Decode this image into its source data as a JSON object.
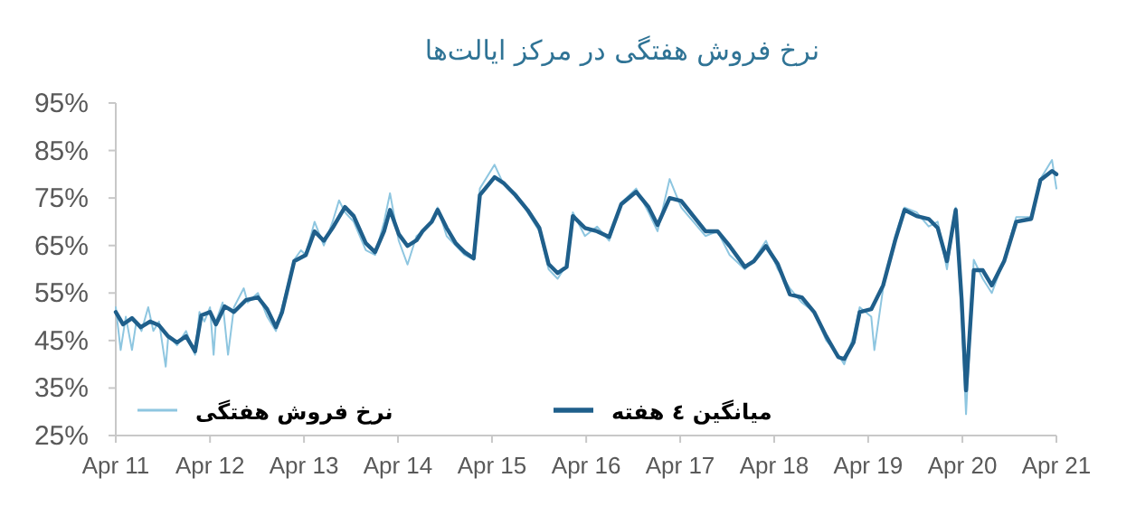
{
  "chart_data": {
    "type": "line",
    "title": "نرخ فروش هفتگی در مرکز ایالت‌ها",
    "legend": "bottom",
    "grid": false,
    "marker": "none",
    "line_style": "solid",
    "xlim": [
      "2011-04",
      "2021-04"
    ],
    "xticks": [
      {
        "value": "2011-04",
        "label": "Apr 11"
      },
      {
        "value": "2012-04",
        "label": "Apr 12"
      },
      {
        "value": "2013-04",
        "label": "Apr 13"
      },
      {
        "value": "2014-04",
        "label": "Apr 14"
      },
      {
        "value": "2015-04",
        "label": "Apr 15"
      },
      {
        "value": "2016-04",
        "label": "Apr 16"
      },
      {
        "value": "2017-04",
        "label": "Apr 17"
      },
      {
        "value": "2018-04",
        "label": "Apr 18"
      },
      {
        "value": "2019-04",
        "label": "Apr 19"
      },
      {
        "value": "2020-04",
        "label": "Apr 20"
      },
      {
        "value": "2021-04",
        "label": "Apr 21"
      }
    ],
    "ylim": [
      25,
      95
    ],
    "yticks": [
      {
        "value": 25,
        "label": "25%"
      },
      {
        "value": 35,
        "label": "35%"
      },
      {
        "value": 45,
        "label": "45%"
      },
      {
        "value": 55,
        "label": "55%"
      },
      {
        "value": 65,
        "label": "65%"
      },
      {
        "value": 75,
        "label": "75%"
      },
      {
        "value": 85,
        "label": "85%"
      },
      {
        "value": 95,
        "label": "95%"
      }
    ],
    "series": [
      {
        "name": "نرخ فروش هفتگی",
        "color": "#8ec6e0",
        "x": [
          "2011-04-01",
          "2011-04-20",
          "2011-05-10",
          "2011-06-03",
          "2011-06-20",
          "2011-07-10",
          "2011-08-05",
          "2011-08-25",
          "2011-09-16",
          "2011-10-12",
          "2011-10-22",
          "2011-11-25",
          "2011-12-30",
          "2012-02-03",
          "2012-02-20",
          "2012-03-10",
          "2012-04-01",
          "2012-04-15",
          "2012-04-24",
          "2012-05-20",
          "2012-06-10",
          "2012-07-03",
          "2012-08-10",
          "2012-08-25",
          "2012-10-04",
          "2012-11-09",
          "2012-12-13",
          "2013-01-06",
          "2013-02-22",
          "2013-03-20",
          "2013-04-08",
          "2013-05-12",
          "2013-06-17",
          "2013-07-21",
          "2013-08-15",
          "2013-09-07",
          "2013-10-11",
          "2013-11-27",
          "2014-01-02",
          "2014-02-06",
          "2014-03-01",
          "2014-04-04",
          "2014-05-08",
          "2014-06-12",
          "2014-07-05",
          "2014-08-10",
          "2014-09-02",
          "2014-10-07",
          "2014-11-11",
          "2014-12-16",
          "2015-01-20",
          "2015-02-13",
          "2015-04-11",
          "2015-05-15",
          "2015-07-01",
          "2015-08-17",
          "2015-10-02",
          "2015-11-07",
          "2015-12-12",
          "2016-01-16",
          "2016-02-09",
          "2016-03-27",
          "2016-05-13",
          "2016-06-29",
          "2016-08-15",
          "2016-10-12",
          "2016-11-29",
          "2017-01-03",
          "2017-02-19",
          "2017-04-05",
          "2017-05-22",
          "2017-07-08",
          "2017-08-24",
          "2017-10-10",
          "2017-12-08",
          "2018-01-12",
          "2018-02-28",
          "2018-04-15",
          "2018-06-01",
          "2018-07-17",
          "2018-09-03",
          "2018-10-20",
          "2018-12-06",
          "2018-12-29",
          "2019-02-03",
          "2019-02-27",
          "2019-04-13",
          "2019-04-25",
          "2019-05-29",
          "2019-07-15",
          "2019-08-20",
          "2019-10-06",
          "2019-11-22",
          "2019-12-27",
          "2020-02-01",
          "2020-03-06",
          "2020-03-29",
          "2020-04-15",
          "2020-05-15",
          "2020-06-19",
          "2020-07-24",
          "2020-09-10",
          "2020-10-27",
          "2020-12-24",
          "2021-01-29",
          "2021-03-15",
          "2021-04-01"
        ],
        "values": [
          52,
          43,
          50,
          43,
          49,
          47,
          52,
          47,
          49,
          39.5,
          46,
          44,
          47,
          42,
          51,
          49,
          52,
          42,
          49,
          53,
          42,
          52,
          56,
          53,
          55,
          50,
          47,
          52,
          62,
          64,
          63,
          70,
          65,
          70,
          74.5,
          72,
          70,
          64,
          63,
          70,
          76,
          66,
          61,
          67,
          68,
          70,
          73,
          67,
          65,
          63,
          62,
          77,
          82,
          78,
          76,
          72,
          68,
          60,
          58,
          61,
          72,
          67,
          69,
          66,
          74,
          77,
          72,
          68,
          79,
          73,
          70,
          67,
          68,
          63,
          60,
          62,
          66,
          60,
          56,
          53,
          51,
          45,
          42,
          40,
          46,
          52,
          50,
          43,
          56,
          67,
          73,
          72,
          69,
          70,
          60,
          73,
          50,
          29.5,
          62,
          58,
          55,
          62,
          71,
          71,
          79,
          83,
          77
        ]
      },
      {
        "name": "میانگین ٤ هفته",
        "color": "#1f5f8b",
        "x": [
          "2011-04-01",
          "2011-04-29",
          "2011-06-03",
          "2011-07-07",
          "2011-08-12",
          "2011-09-16",
          "2011-10-21",
          "2011-11-25",
          "2011-12-30",
          "2012-02-03",
          "2012-02-27",
          "2012-04-01",
          "2012-04-24",
          "2012-05-28",
          "2012-07-03",
          "2012-08-18",
          "2012-10-04",
          "2012-11-09",
          "2012-12-13",
          "2013-01-06",
          "2013-02-22",
          "2013-04-08",
          "2013-05-12",
          "2013-06-17",
          "2013-07-21",
          "2013-09-07",
          "2013-10-11",
          "2013-11-27",
          "2014-01-02",
          "2014-02-06",
          "2014-03-01",
          "2014-04-04",
          "2014-05-08",
          "2014-06-12",
          "2014-07-05",
          "2014-08-10",
          "2014-09-02",
          "2014-10-07",
          "2014-11-11",
          "2014-12-16",
          "2015-01-20",
          "2015-02-13",
          "2015-04-11",
          "2015-05-15",
          "2015-07-01",
          "2015-08-17",
          "2015-10-02",
          "2015-11-07",
          "2015-12-12",
          "2016-01-16",
          "2016-02-09",
          "2016-03-27",
          "2016-05-13",
          "2016-06-29",
          "2016-08-15",
          "2016-10-12",
          "2016-11-29",
          "2017-01-03",
          "2017-02-19",
          "2017-04-05",
          "2017-05-22",
          "2017-07-08",
          "2017-08-24",
          "2017-10-10",
          "2017-12-08",
          "2018-01-12",
          "2018-02-28",
          "2018-04-15",
          "2018-06-01",
          "2018-07-17",
          "2018-09-03",
          "2018-10-20",
          "2018-12-06",
          "2018-12-29",
          "2019-02-03",
          "2019-02-27",
          "2019-04-13",
          "2019-05-29",
          "2019-07-15",
          "2019-08-20",
          "2019-10-06",
          "2019-11-22",
          "2019-12-27",
          "2020-02-01",
          "2020-03-06",
          "2020-03-29",
          "2020-04-15",
          "2020-05-15",
          "2020-06-19",
          "2020-07-24",
          "2020-09-10",
          "2020-10-27",
          "2020-12-24",
          "2021-01-29",
          "2021-03-15",
          "2021-04-01"
        ],
        "values": [
          51,
          48.4,
          49.7,
          47.8,
          49,
          48.2,
          45.9,
          44.6,
          45.9,
          42.7,
          50.3,
          51,
          48.4,
          52.2,
          51,
          53.5,
          54.1,
          51.6,
          47.8,
          51,
          61.7,
          63,
          68,
          66,
          68.7,
          73.1,
          71.2,
          65.5,
          63.6,
          68,
          72.5,
          67.4,
          64.9,
          66.1,
          68,
          70,
          72.5,
          68.7,
          65.5,
          63.6,
          62.3,
          75.6,
          79.4,
          78.2,
          75.6,
          72.5,
          68.7,
          61.1,
          59.2,
          60.5,
          71.2,
          68.7,
          68,
          66.8,
          73.7,
          76.3,
          73.1,
          69.3,
          75,
          74.4,
          71.2,
          68,
          68,
          64.9,
          60.5,
          61.7,
          64.9,
          61.1,
          54.7,
          54.1,
          51,
          45.9,
          41.5,
          41.1,
          44.6,
          51,
          51.6,
          56.6,
          66.1,
          72.5,
          71.2,
          70.6,
          68.7,
          61.7,
          72.5,
          53.5,
          34.5,
          59.8,
          59.8,
          56.6,
          61.7,
          70,
          70.6,
          78.8,
          80.7,
          80
        ]
      }
    ]
  }
}
